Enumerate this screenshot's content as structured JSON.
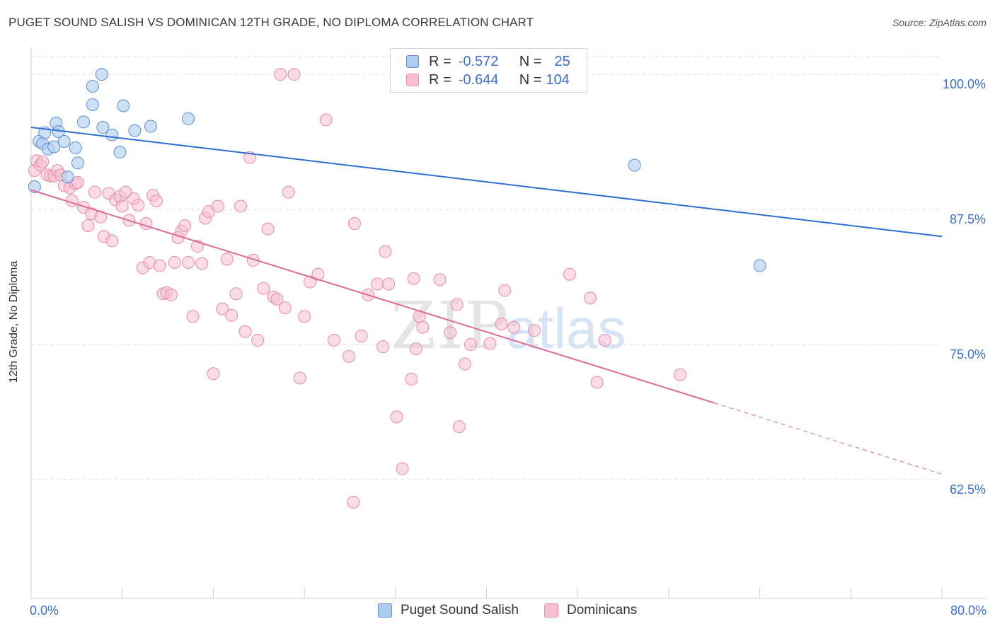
{
  "title": "PUGET SOUND SALISH VS DOMINICAN 12TH GRADE, NO DIPLOMA CORRELATION CHART",
  "source": "Source: ZipAtlas.com",
  "watermark": {
    "zip": "ZIP",
    "atlas": "atlas"
  },
  "legend": {
    "r_label": "R =",
    "n_label": "N =",
    "series": [
      {
        "name": "Puget Sound Salish",
        "r": "-0.572",
        "n": "25"
      },
      {
        "name": "Dominicans",
        "r": "-0.644",
        "n": "104"
      }
    ]
  },
  "colors": {
    "blue_fill": "#aecbf0",
    "blue_stroke": "#5b8ed6",
    "blue_line": "#2f6fd0",
    "pink_fill": "#f7bfd0",
    "pink_stroke": "#e88aa8",
    "pink_line": "#e06a95",
    "axis_text": "#3b6fd0",
    "grid": "#dddddd"
  },
  "chart_data": {
    "type": "scatter",
    "title": "PUGET SOUND SALISH VS DOMINICAN 12TH GRADE, NO DIPLOMA CORRELATION CHART",
    "xlabel": "",
    "ylabel": "12th Grade, No Diploma",
    "xlim": [
      0,
      80
    ],
    "ylim": [
      51.5,
      102.5
    ],
    "x_tick_labels": [
      "0.0%",
      "80.0%"
    ],
    "y_ticks": [
      62.5,
      75.0,
      87.5,
      100.0
    ],
    "y_tick_labels": [
      "62.5%",
      "75.0%",
      "87.5%",
      "100.0%"
    ],
    "legend_position": "top-center",
    "series": [
      {
        "name": "Puget Sound Salish",
        "color": "#aecbf0",
        "points": [
          [
            0.3,
            89.6
          ],
          [
            0.7,
            93.8
          ],
          [
            1.0,
            93.6
          ],
          [
            1.2,
            94.6
          ],
          [
            1.5,
            93.1
          ],
          [
            2.0,
            93.3
          ],
          [
            2.2,
            95.5
          ],
          [
            2.4,
            94.7
          ],
          [
            2.9,
            93.8
          ],
          [
            3.2,
            90.5
          ],
          [
            3.9,
            93.2
          ],
          [
            4.1,
            91.8
          ],
          [
            4.6,
            95.6
          ],
          [
            5.4,
            98.9
          ],
          [
            5.4,
            97.2
          ],
          [
            6.2,
            100.0
          ],
          [
            6.3,
            95.1
          ],
          [
            7.1,
            94.4
          ],
          [
            7.8,
            92.8
          ],
          [
            8.1,
            97.1
          ],
          [
            9.1,
            94.8
          ],
          [
            10.5,
            95.2
          ],
          [
            13.8,
            95.9
          ],
          [
            53.0,
            91.6
          ],
          [
            64.0,
            82.3
          ]
        ],
        "trend": {
          "x": [
            0,
            80
          ],
          "y": [
            95.1,
            85.0
          ]
        }
      },
      {
        "name": "Dominicans",
        "color": "#f7bfd0",
        "points": [
          [
            0.3,
            91.1
          ],
          [
            0.5,
            92.0
          ],
          [
            0.8,
            91.6
          ],
          [
            1.0,
            91.9
          ],
          [
            1.4,
            90.7
          ],
          [
            1.7,
            90.6
          ],
          [
            2.0,
            90.6
          ],
          [
            2.3,
            91.1
          ],
          [
            2.6,
            90.7
          ],
          [
            2.9,
            89.7
          ],
          [
            3.4,
            89.5
          ],
          [
            3.6,
            88.3
          ],
          [
            3.9,
            89.9
          ],
          [
            4.1,
            90.0
          ],
          [
            4.6,
            87.7
          ],
          [
            5.0,
            86.0
          ],
          [
            5.3,
            87.1
          ],
          [
            5.6,
            89.1
          ],
          [
            6.1,
            86.8
          ],
          [
            6.4,
            85.0
          ],
          [
            6.8,
            89.0
          ],
          [
            7.1,
            84.6
          ],
          [
            7.4,
            88.4
          ],
          [
            7.8,
            88.7
          ],
          [
            8.0,
            87.8
          ],
          [
            8.3,
            89.1
          ],
          [
            8.6,
            86.5
          ],
          [
            9.0,
            88.5
          ],
          [
            9.4,
            87.9
          ],
          [
            9.8,
            82.1
          ],
          [
            10.1,
            86.2
          ],
          [
            10.4,
            82.6
          ],
          [
            10.7,
            88.8
          ],
          [
            11.0,
            88.3
          ],
          [
            11.3,
            82.3
          ],
          [
            11.6,
            79.7
          ],
          [
            11.9,
            79.8
          ],
          [
            12.3,
            79.6
          ],
          [
            12.6,
            82.6
          ],
          [
            12.9,
            84.9
          ],
          [
            13.2,
            85.5
          ],
          [
            13.5,
            86.0
          ],
          [
            13.8,
            82.6
          ],
          [
            14.2,
            77.6
          ],
          [
            14.6,
            84.1
          ],
          [
            15.0,
            82.5
          ],
          [
            15.3,
            86.7
          ],
          [
            15.6,
            87.3
          ],
          [
            16.0,
            72.3
          ],
          [
            16.4,
            87.8
          ],
          [
            16.8,
            78.3
          ],
          [
            17.2,
            82.9
          ],
          [
            17.6,
            77.7
          ],
          [
            18.0,
            79.7
          ],
          [
            18.4,
            87.8
          ],
          [
            18.8,
            76.2
          ],
          [
            19.2,
            92.3
          ],
          [
            19.5,
            82.8
          ],
          [
            19.9,
            75.4
          ],
          [
            20.4,
            80.2
          ],
          [
            20.8,
            85.7
          ],
          [
            21.3,
            79.4
          ],
          [
            21.6,
            79.2
          ],
          [
            21.9,
            100.0
          ],
          [
            22.3,
            78.4
          ],
          [
            22.6,
            89.1
          ],
          [
            23.1,
            100.0
          ],
          [
            23.6,
            71.9
          ],
          [
            24.0,
            77.6
          ],
          [
            24.5,
            80.8
          ],
          [
            25.2,
            81.5
          ],
          [
            25.9,
            95.8
          ],
          [
            26.6,
            75.4
          ],
          [
            27.9,
            73.9
          ],
          [
            28.4,
            86.2
          ],
          [
            29.0,
            75.8
          ],
          [
            29.6,
            79.6
          ],
          [
            30.4,
            80.6
          ],
          [
            30.9,
            74.8
          ],
          [
            31.1,
            83.6
          ],
          [
            31.4,
            80.6
          ],
          [
            32.1,
            68.3
          ],
          [
            32.6,
            63.5
          ],
          [
            33.4,
            71.8
          ],
          [
            33.6,
            81.1
          ],
          [
            33.8,
            74.6
          ],
          [
            34.1,
            77.6
          ],
          [
            34.4,
            76.6
          ],
          [
            35.9,
            81.0
          ],
          [
            36.8,
            76.1
          ],
          [
            37.4,
            78.7
          ],
          [
            37.6,
            67.4
          ],
          [
            38.1,
            73.2
          ],
          [
            38.6,
            75.0
          ],
          [
            40.3,
            75.1
          ],
          [
            41.3,
            76.9
          ],
          [
            41.6,
            80.0
          ],
          [
            42.4,
            76.6
          ],
          [
            44.2,
            76.3
          ],
          [
            47.3,
            81.5
          ],
          [
            49.1,
            79.3
          ],
          [
            49.7,
            71.5
          ],
          [
            50.4,
            75.4
          ],
          [
            57.0,
            72.2
          ]
        ],
        "extra_points": [
          [
            28.3,
            60.4
          ]
        ],
        "trend": {
          "x": [
            0,
            60
          ],
          "y": [
            89.3,
            69.6
          ]
        },
        "trend_dashed": {
          "x": [
            60,
            80
          ],
          "y": [
            69.6,
            63.0
          ]
        }
      }
    ]
  }
}
